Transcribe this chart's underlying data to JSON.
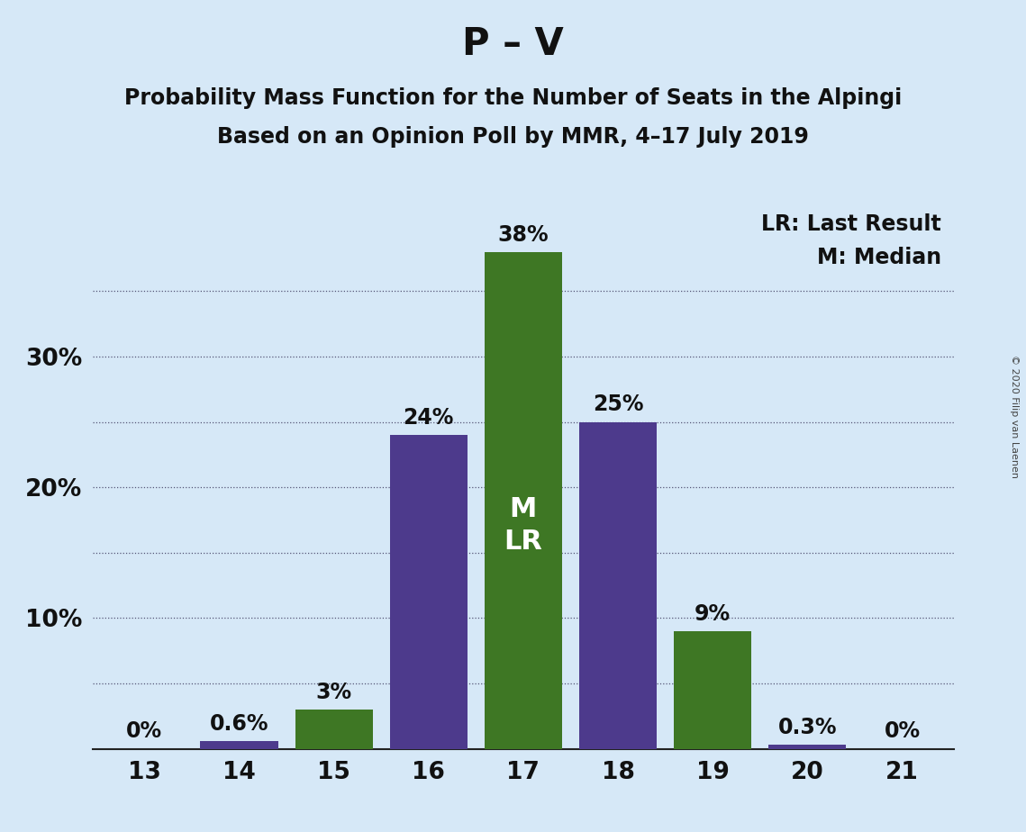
{
  "title": "P – V",
  "subtitle1": "Probability Mass Function for the Number of Seats in the Alpingi",
  "subtitle2": "Based on an Opinion Poll by MMR, 4–17 July 2019",
  "copyright": "© 2020 Filip van Laenen",
  "seats": [
    13,
    14,
    15,
    16,
    17,
    18,
    19,
    20,
    21
  ],
  "probabilities": [
    0.0,
    0.6,
    3.0,
    24.0,
    38.0,
    25.0,
    9.0,
    0.3,
    0.0
  ],
  "bar_colors": [
    "#3e7724",
    "#4d3a8c",
    "#3e7724",
    "#4d3a8c",
    "#3e7724",
    "#4d3a8c",
    "#3e7724",
    "#4d3a8c",
    "#3e7724"
  ],
  "bar_labels": [
    "0%",
    "0.6%",
    "3%",
    "24%",
    "38%",
    "25%",
    "9%",
    "0.3%",
    "0%"
  ],
  "bar_annotations": {
    "4": [
      "M",
      "LR"
    ]
  },
  "ylim": [
    0,
    42
  ],
  "shown_yticks": [
    10,
    20,
    30
  ],
  "grid_yticks": [
    5,
    10,
    15,
    20,
    25,
    30,
    35
  ],
  "background_color": "#d6e8f7",
  "legend_text": [
    "LR: Last Result",
    "M: Median"
  ],
  "title_fontsize": 30,
  "subtitle_fontsize": 17,
  "label_fontsize": 17,
  "tick_fontsize": 19,
  "annotation_fontsize": 22,
  "legend_fontsize": 17,
  "copyright_fontsize": 8
}
